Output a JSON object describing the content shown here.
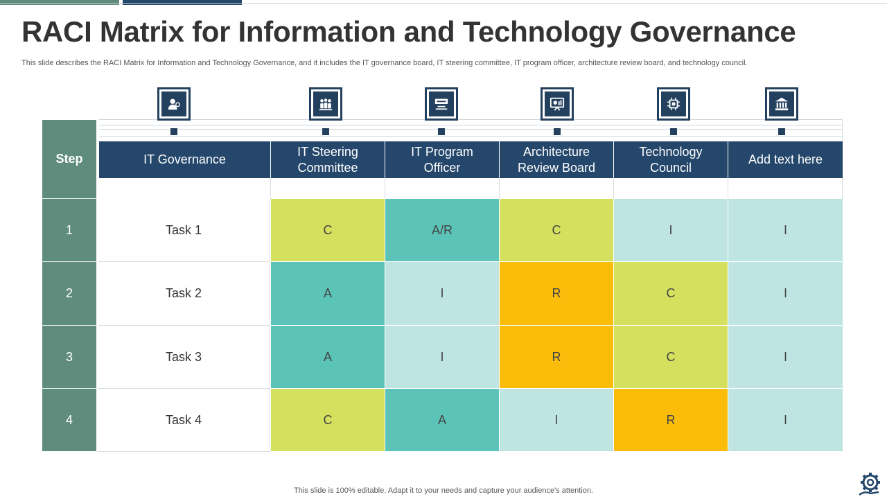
{
  "title": "RACI Matrix for Information and Technology Governance",
  "subtitle": "This slide describes the RACI Matrix for Information and Technology Governance, and it includes the IT governance board, IT steering committee, IT program officer, architecture review board, and technology council.",
  "footer": "This slide is 100% editable. Adapt it to your needs and capture your audience's attention.",
  "colors": {
    "navy": "#24476b",
    "teal_grey": "#5f8c7d",
    "olive": "#d5e05e",
    "teal": "#5bc3b8",
    "light": "#bfe5e3",
    "orange": "#fbbd0a"
  },
  "table": {
    "step_label": "Step",
    "columns": [
      "IT Governance",
      "IT Steering Committee",
      "IT Program Officer",
      "Architecture Review Board",
      "Technology Council",
      "Add text here"
    ],
    "column_icons": [
      "person-icon",
      "team-icon",
      "monitor-icon",
      "presentation-icon",
      "chip-icon",
      "building-icon"
    ],
    "rows": [
      {
        "step": "1",
        "task": "Task 1",
        "values": [
          "C",
          "A/R",
          "C",
          "I",
          "I"
        ],
        "tones": [
          "olive",
          "teal",
          "olive",
          "light",
          "light"
        ]
      },
      {
        "step": "2",
        "task": "Task 2",
        "values": [
          "A",
          "I",
          "R",
          "C",
          "I"
        ],
        "tones": [
          "teal",
          "light",
          "orange",
          "olive",
          "light"
        ]
      },
      {
        "step": "3",
        "task": "Task 3",
        "values": [
          "A",
          "I",
          "R",
          "C",
          "I"
        ],
        "tones": [
          "teal",
          "light",
          "orange",
          "olive",
          "light"
        ]
      },
      {
        "step": "4",
        "task": "Task 4",
        "values": [
          "C",
          "A",
          "I",
          "R",
          "I"
        ],
        "tones": [
          "olive",
          "teal",
          "light",
          "orange",
          "light"
        ]
      }
    ]
  }
}
